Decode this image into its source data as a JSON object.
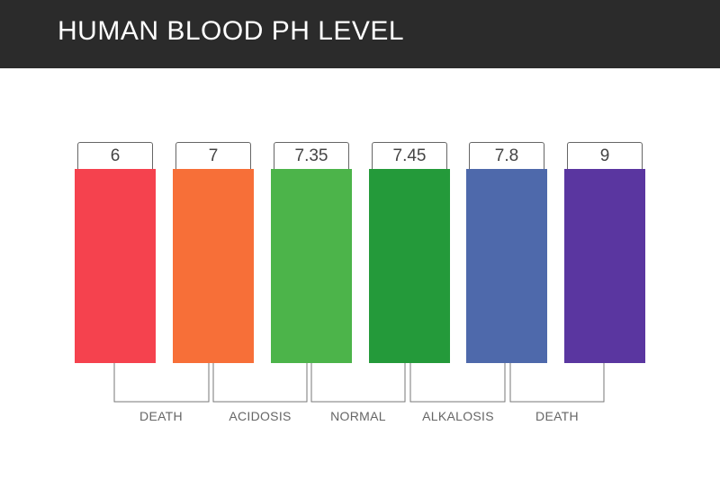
{
  "header": {
    "title": "HUMAN BLOOD PH LEVEL"
  },
  "levels": [
    {
      "value": "6",
      "color": "#f5424e"
    },
    {
      "value": "7",
      "color": "#f76f38"
    },
    {
      "value": "7.35",
      "color": "#4cb44a"
    },
    {
      "value": "7.45",
      "color": "#249a3a"
    },
    {
      "value": "7.8",
      "color": "#4e69ab"
    },
    {
      "value": "9",
      "color": "#5a36a0"
    }
  ],
  "ranges": [
    {
      "label": "DEATH"
    },
    {
      "label": "ACIDOSIS"
    },
    {
      "label": "NORMAL"
    },
    {
      "label": "ALKALOSIS"
    },
    {
      "label": "DEATH"
    }
  ]
}
